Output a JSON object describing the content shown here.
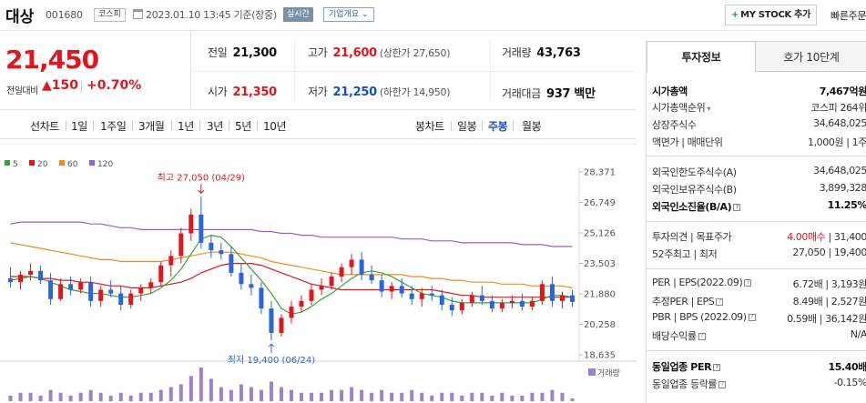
{
  "header": {
    "company": "대상",
    "code": "001680",
    "market": "코스피",
    "timestamp": "2023.01.10 13:45",
    "basis": "기준(장중)",
    "realtime": "실시간",
    "company_info": "기업개요 ⌄",
    "mystock": "MY STOCK 추가",
    "quick_order": "빠른주문"
  },
  "price": {
    "current": "21,450",
    "change_label": "전일대비",
    "change": "▲150",
    "change_pct": "+0.70%"
  },
  "stats": {
    "prev_close_label": "전일",
    "prev_close": "21,300",
    "high_label": "고가",
    "high": "21,600",
    "upper_limit": "(상한가 27,650)",
    "volume_label": "거래량",
    "volume": "43,763",
    "open_label": "시가",
    "open": "21,350",
    "low_label": "저가",
    "low": "21,250",
    "lower_limit": "(하한가 14,950)",
    "amount_label": "거래대금",
    "amount": "937 백만"
  },
  "periods": {
    "line_label": "선차트",
    "items": [
      "1일",
      "1주일",
      "3개월",
      "1년",
      "3년",
      "5년",
      "10년"
    ],
    "candle_label": "봉차트",
    "candles": [
      "일봉",
      "주봉",
      "월봉"
    ],
    "active_candle": "주봉"
  },
  "chart_data": {
    "type": "candlestick",
    "y_ticks": [
      "28,371",
      "26,749",
      "25,126",
      "23,503",
      "21,880",
      "20,258",
      "18,635"
    ],
    "y_range": [
      18635,
      28371
    ],
    "legend": [
      {
        "name": "5",
        "color": "#3aa13a"
      },
      {
        "name": "20",
        "color": "#e0161f"
      },
      {
        "name": "60",
        "color": "#f08c1e"
      },
      {
        "name": "120",
        "color": "#9b5fc0"
      }
    ],
    "high_annotation": "최고 27,050 (04/29)",
    "low_annotation": "최저 19,400 (06/24)",
    "volume_label": "거래량",
    "candles": [
      [
        22700,
        23300,
        22200,
        22500
      ],
      [
        22500,
        23100,
        22100,
        22900
      ],
      [
        22900,
        23500,
        22600,
        23100
      ],
      [
        23100,
        23400,
        22400,
        22600
      ],
      [
        22600,
        23000,
        21300,
        21600
      ],
      [
        21600,
        22700,
        21500,
        22400
      ],
      [
        22400,
        22800,
        21800,
        22100
      ],
      [
        22100,
        22700,
        21900,
        22500
      ],
      [
        22500,
        22800,
        21200,
        21500
      ],
      [
        21500,
        22300,
        21200,
        22100
      ],
      [
        22100,
        22600,
        21700,
        21900
      ],
      [
        21900,
        22300,
        21000,
        21300
      ],
      [
        21300,
        22100,
        21100,
        21900
      ],
      [
        21900,
        22400,
        21500,
        22200
      ],
      [
        22200,
        22700,
        21900,
        22500
      ],
      [
        22500,
        23600,
        22300,
        23400
      ],
      [
        23400,
        24200,
        22800,
        23900
      ],
      [
        23900,
        25400,
        23500,
        25100
      ],
      [
        25100,
        26400,
        24700,
        26100
      ],
      [
        26100,
        27050,
        24300,
        24600
      ],
      [
        24600,
        25000,
        23800,
        24200
      ],
      [
        24200,
        24600,
        23700,
        24000
      ],
      [
        24000,
        24400,
        22800,
        23000
      ],
      [
        23000,
        23500,
        22100,
        22400
      ],
      [
        22400,
        22900,
        21800,
        22200
      ],
      [
        22200,
        22500,
        20800,
        21100
      ],
      [
        21100,
        21500,
        19400,
        19800
      ],
      [
        19800,
        20800,
        19600,
        20600
      ],
      [
        20600,
        21500,
        20300,
        21200
      ],
      [
        21200,
        21800,
        20900,
        21500
      ],
      [
        21500,
        22400,
        21300,
        22100
      ],
      [
        22100,
        22700,
        21800,
        22300
      ],
      [
        22300,
        23000,
        22100,
        22800
      ],
      [
        22800,
        23500,
        22500,
        23300
      ],
      [
        23300,
        24000,
        22900,
        23700
      ],
      [
        23700,
        24100,
        22600,
        22900
      ],
      [
        22900,
        23400,
        22400,
        22600
      ],
      [
        22600,
        22900,
        21700,
        22000
      ],
      [
        22000,
        22500,
        21600,
        22300
      ],
      [
        22300,
        22700,
        21700,
        21900
      ],
      [
        21900,
        22300,
        21300,
        21600
      ],
      [
        21600,
        22200,
        21200,
        21900
      ],
      [
        21900,
        22300,
        21500,
        21800
      ],
      [
        21800,
        22100,
        21000,
        21300
      ],
      [
        21300,
        21700,
        20700,
        21000
      ],
      [
        21000,
        21600,
        20800,
        21400
      ],
      [
        21400,
        22000,
        21200,
        21800
      ],
      [
        21800,
        22300,
        21300,
        21500
      ],
      [
        21500,
        21800,
        20900,
        21100
      ],
      [
        21100,
        21600,
        20900,
        21400
      ],
      [
        21400,
        21800,
        21100,
        21500
      ],
      [
        21500,
        21900,
        21000,
        21200
      ],
      [
        21200,
        21700,
        21000,
        21500
      ],
      [
        21500,
        22600,
        21300,
        22400
      ],
      [
        22400,
        22800,
        21200,
        21500
      ],
      [
        21500,
        22000,
        21100,
        21800
      ],
      [
        21800,
        22100,
        21200,
        21450
      ]
    ],
    "volumes": [
      2,
      3,
      3,
      2,
      4,
      3,
      2,
      3,
      4,
      3,
      2,
      3,
      2,
      3,
      3,
      4,
      5,
      6,
      9,
      12,
      8,
      5,
      4,
      6,
      5,
      4,
      7,
      5,
      4,
      3,
      3,
      3,
      4,
      4,
      5,
      4,
      3,
      4,
      3,
      3,
      4,
      3,
      2,
      3,
      3,
      2,
      3,
      3,
      2,
      3,
      2,
      2,
      3,
      3,
      4,
      3,
      1
    ],
    "ma5": [
      22600,
      22700,
      22800,
      22700,
      22500,
      22300,
      22100,
      22000,
      21900,
      21900,
      21800,
      21700,
      21700,
      21800,
      21900,
      22200,
      22600,
      23200,
      24000,
      24800,
      25000,
      24900,
      24400,
      23800,
      23200,
      22600,
      21900,
      21100,
      20800,
      20900,
      21200,
      21600,
      21900,
      22300,
      22700,
      23000,
      23100,
      23000,
      22800,
      22500,
      22200,
      21900,
      21800,
      21700,
      21500,
      21400,
      21400,
      21400,
      21400,
      21400,
      21400,
      21400,
      21400,
      21600,
      21800,
      21800,
      21700
    ],
    "ma20": [
      22800,
      22800,
      22800,
      22700,
      22700,
      22600,
      22600,
      22500,
      22500,
      22400,
      22300,
      22300,
      22200,
      22200,
      22200,
      22300,
      22400,
      22500,
      22700,
      23000,
      23200,
      23400,
      23500,
      23500,
      23500,
      23400,
      23200,
      23000,
      22800,
      22600,
      22400,
      22300,
      22200,
      22100,
      22100,
      22100,
      22100,
      22100,
      22100,
      22100,
      22100,
      22100,
      22100,
      22000,
      21900,
      21800,
      21800,
      21700,
      21700,
      21700,
      21700,
      21700,
      21700,
      21700,
      21700,
      21700,
      21700
    ],
    "ma60": [
      24600,
      24500,
      24400,
      24300,
      24200,
      24100,
      24000,
      23900,
      23800,
      23700,
      23700,
      23600,
      23600,
      23600,
      23600,
      23600,
      23700,
      23800,
      23900,
      24000,
      24100,
      24100,
      24100,
      24000,
      23900,
      23800,
      23600,
      23500,
      23400,
      23300,
      23200,
      23100,
      23000,
      22900,
      22900,
      22900,
      22900,
      22900,
      22900,
      22900,
      22800,
      22800,
      22700,
      22700,
      22600,
      22600,
      22500,
      22500,
      22500,
      22400,
      22400,
      22400,
      22300,
      22300,
      22300,
      22300,
      22200
    ],
    "ma120": [
      25600,
      25700,
      25700,
      25700,
      25700,
      25700,
      25700,
      25700,
      25600,
      25600,
      25500,
      25400,
      25400,
      25300,
      25300,
      25300,
      25300,
      25300,
      25300,
      25300,
      25300,
      25300,
      25300,
      25300,
      25300,
      25200,
      25200,
      25100,
      25100,
      25000,
      25000,
      24900,
      24900,
      24900,
      24900,
      24900,
      24900,
      24900,
      24900,
      24800,
      24800,
      24800,
      24700,
      24700,
      24700,
      24600,
      24600,
      24600,
      24600,
      24600,
      24600,
      24500,
      24500,
      24500,
      24400,
      24400,
      24400
    ]
  },
  "panel": {
    "tab_info": "투자정보",
    "tab_orderbook": "호가 10단계",
    "rows1": [
      {
        "label": "시가총액",
        "value": "7,467억원",
        "bold": true
      },
      {
        "label": "시가총액순위",
        "value": "코스피 264위"
      },
      {
        "label": "상장주식수",
        "value": "34,648,025"
      },
      {
        "label": "액면가 | 매매단위",
        "value": "1,000원 | 1주"
      }
    ],
    "rows2": [
      {
        "label": "외국인한도주식수(A)",
        "value": "34,648,025"
      },
      {
        "label": "외국인보유주식수(B)",
        "value": "3,899,328"
      },
      {
        "label": "외국인소진율(B/A)",
        "value": "11.25%",
        "bold": true
      }
    ],
    "opinion_label": "투자의견 | 목표주가",
    "opinion_value": "4.00매수",
    "target_price": "31,400",
    "week52_label": "52주최고 | 최저",
    "week52_value": "27,050 | 19,400",
    "rows3": [
      {
        "label": "PER | EPS(2022.09)",
        "value": "6.72배 | 3,193원"
      },
      {
        "label": "추정PER | EPS",
        "value": "8.49배 | 2,527원"
      },
      {
        "label": "PBR | BPS (2022.09)",
        "value": "0.59배 | 36,142원"
      },
      {
        "label": "배당수익률",
        "value": "N/A"
      }
    ],
    "industry_per_label": "동일업종 PER",
    "industry_per": "15.40배",
    "industry_rate_label": "동일업종 등락률",
    "industry_rate": "-0.15%"
  }
}
